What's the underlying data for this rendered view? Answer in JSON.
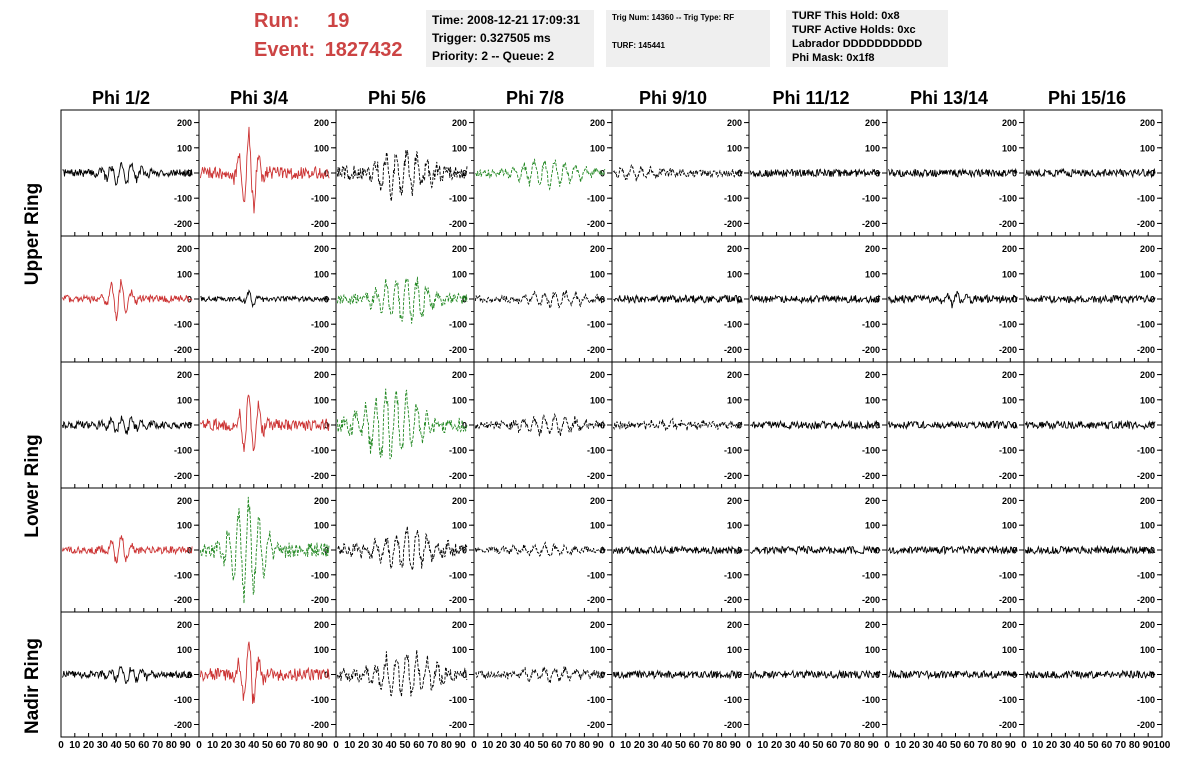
{
  "header": {
    "run_label": "Run:",
    "run_value": "19",
    "event_label": "Event:",
    "event_value": "1827432",
    "time_line": "Time: 2008-12-21 17:09:31",
    "trigger_line": "Trigger: 0.327505 ms",
    "priority_line": "Priority: 2 -- Queue: 2",
    "trig_line": "Trig Num: 14360 -- Trig Type: RF",
    "turf_line": "TURF: 145441",
    "hold_line": "TURF This Hold: 0x8",
    "active_line": "TURF Active Holds: 0xc",
    "labrador_line": "Labrador DDDDDDDDDD",
    "phimask_line": "Phi Mask: 0x1f8"
  },
  "colors": {
    "trigger_red": "#cc3333",
    "trigger_green": "#228822",
    "normal": "#000000",
    "title_red": "#cc4444",
    "info_bg": "#efefef"
  },
  "columns": [
    "Phi 1/2",
    "Phi 3/4",
    "Phi 5/6",
    "Phi 7/8",
    "Phi 9/10",
    "Phi 11/12",
    "Phi 13/14",
    "Phi 15/16"
  ],
  "rows": [
    "Upper Ring",
    "Lower Ring",
    "Nadir Ring"
  ],
  "chart_data": {
    "type": "line",
    "title": "",
    "xlabel": "",
    "ylabel": "",
    "xlim": [
      0,
      100
    ],
    "ylim": [
      -250,
      250
    ],
    "x_ticks": [
      "0",
      "10",
      "20",
      "30",
      "40",
      "50",
      "60",
      "70",
      "80",
      "90",
      "100"
    ],
    "y_ticks": [
      "200",
      "100",
      "0",
      "-100",
      "-200"
    ],
    "panel_rows": 5,
    "panel_cols": 8,
    "grid": false,
    "panels": [
      {
        "row": 0,
        "col": 0,
        "style": "solid",
        "color": "normal",
        "center": 45,
        "width": 15,
        "amp": 50,
        "noise": 15,
        "end": 95
      },
      {
        "row": 0,
        "col": 1,
        "style": "solid",
        "color": "trigger_red",
        "center": 37,
        "width": 8,
        "amp": 190,
        "noise": 25,
        "end": 95
      },
      {
        "row": 0,
        "col": 2,
        "style": "dashed",
        "color": "normal",
        "center": 48,
        "width": 22,
        "amp": 110,
        "noise": 30,
        "end": 95
      },
      {
        "row": 0,
        "col": 3,
        "style": "dashed",
        "color": "trigger_green",
        "center": 55,
        "width": 25,
        "amp": 60,
        "noise": 15,
        "end": 95
      },
      {
        "row": 0,
        "col": 4,
        "style": "dashed",
        "color": "normal",
        "center": 20,
        "width": 20,
        "amp": 25,
        "noise": 15,
        "end": 95
      },
      {
        "row": 0,
        "col": 5,
        "style": "solid",
        "color": "normal",
        "center": 50,
        "width": 30,
        "amp": 0,
        "noise": 15,
        "end": 95
      },
      {
        "row": 0,
        "col": 6,
        "style": "solid",
        "color": "normal",
        "center": 50,
        "width": 30,
        "amp": 0,
        "noise": 15,
        "end": 95
      },
      {
        "row": 0,
        "col": 7,
        "style": "solid",
        "color": "normal",
        "center": 50,
        "width": 30,
        "amp": 0,
        "noise": 15,
        "end": 95
      },
      {
        "row": 1,
        "col": 0,
        "style": "solid",
        "color": "trigger_red",
        "center": 42,
        "width": 9,
        "amp": 90,
        "noise": 15,
        "end": 95
      },
      {
        "row": 1,
        "col": 1,
        "style": "solid",
        "color": "normal",
        "center": 38,
        "width": 5,
        "amp": 40,
        "noise": 10,
        "end": 95
      },
      {
        "row": 1,
        "col": 2,
        "style": "dashed",
        "color": "trigger_green",
        "center": 50,
        "width": 20,
        "amp": 110,
        "noise": 20,
        "end": 95
      },
      {
        "row": 1,
        "col": 3,
        "style": "dashed",
        "color": "normal",
        "center": 60,
        "width": 25,
        "amp": 35,
        "noise": 15,
        "end": 95
      },
      {
        "row": 1,
        "col": 4,
        "style": "solid",
        "color": "normal",
        "center": 50,
        "width": 30,
        "amp": 0,
        "noise": 15,
        "end": 95
      },
      {
        "row": 1,
        "col": 5,
        "style": "solid",
        "color": "normal",
        "center": 50,
        "width": 30,
        "amp": 0,
        "noise": 15,
        "end": 95
      },
      {
        "row": 1,
        "col": 6,
        "style": "solid",
        "color": "normal",
        "center": 50,
        "width": 10,
        "amp": 30,
        "noise": 15,
        "end": 95
      },
      {
        "row": 1,
        "col": 7,
        "style": "solid",
        "color": "normal",
        "center": 50,
        "width": 30,
        "amp": 0,
        "noise": 15,
        "end": 95
      },
      {
        "row": 2,
        "col": 0,
        "style": "solid",
        "color": "normal",
        "center": 45,
        "width": 15,
        "amp": 35,
        "noise": 15,
        "end": 95
      },
      {
        "row": 2,
        "col": 1,
        "style": "solid",
        "color": "trigger_red",
        "center": 37,
        "width": 8,
        "amp": 150,
        "noise": 25,
        "end": 95
      },
      {
        "row": 2,
        "col": 2,
        "style": "dashed",
        "color": "trigger_green",
        "center": 40,
        "width": 22,
        "amp": 160,
        "noise": 30,
        "end": 95
      },
      {
        "row": 2,
        "col": 3,
        "style": "dashed",
        "color": "normal",
        "center": 55,
        "width": 25,
        "amp": 40,
        "noise": 15,
        "end": 95
      },
      {
        "row": 2,
        "col": 4,
        "style": "dashed",
        "color": "normal",
        "center": 50,
        "width": 30,
        "amp": 15,
        "noise": 15,
        "end": 95
      },
      {
        "row": 2,
        "col": 5,
        "style": "solid",
        "color": "normal",
        "center": 50,
        "width": 30,
        "amp": 0,
        "noise": 15,
        "end": 95
      },
      {
        "row": 2,
        "col": 6,
        "style": "solid",
        "color": "normal",
        "center": 50,
        "width": 30,
        "amp": 0,
        "noise": 15,
        "end": 95
      },
      {
        "row": 2,
        "col": 7,
        "style": "solid",
        "color": "normal",
        "center": 50,
        "width": 30,
        "amp": 0,
        "noise": 15,
        "end": 95
      },
      {
        "row": 3,
        "col": 0,
        "style": "solid",
        "color": "trigger_red",
        "center": 42,
        "width": 9,
        "amp": 70,
        "noise": 15,
        "end": 95
      },
      {
        "row": 3,
        "col": 1,
        "style": "dashed",
        "color": "trigger_green",
        "center": 35,
        "width": 15,
        "amp": 230,
        "noise": 30,
        "end": 95
      },
      {
        "row": 3,
        "col": 2,
        "style": "dashed",
        "color": "normal",
        "center": 50,
        "width": 25,
        "amp": 90,
        "noise": 25,
        "end": 95
      },
      {
        "row": 3,
        "col": 3,
        "style": "dashed",
        "color": "normal",
        "center": 50,
        "width": 25,
        "amp": 25,
        "noise": 12,
        "end": 95
      },
      {
        "row": 3,
        "col": 4,
        "style": "solid",
        "color": "normal",
        "center": 50,
        "width": 30,
        "amp": 0,
        "noise": 15,
        "end": 95
      },
      {
        "row": 3,
        "col": 5,
        "style": "solid",
        "color": "normal",
        "center": 50,
        "width": 30,
        "amp": 0,
        "noise": 15,
        "end": 95
      },
      {
        "row": 3,
        "col": 6,
        "style": "solid",
        "color": "normal",
        "center": 50,
        "width": 30,
        "amp": 0,
        "noise": 15,
        "end": 95
      },
      {
        "row": 3,
        "col": 7,
        "style": "solid",
        "color": "normal",
        "center": 50,
        "width": 30,
        "amp": 0,
        "noise": 15,
        "end": 95
      },
      {
        "row": 4,
        "col": 0,
        "style": "solid",
        "color": "normal",
        "center": 48,
        "width": 15,
        "amp": 35,
        "noise": 15,
        "end": 95
      },
      {
        "row": 4,
        "col": 1,
        "style": "solid",
        "color": "trigger_red",
        "center": 37,
        "width": 8,
        "amp": 150,
        "noise": 25,
        "end": 95
      },
      {
        "row": 4,
        "col": 2,
        "style": "dashed",
        "color": "normal",
        "center": 50,
        "width": 25,
        "amp": 100,
        "noise": 25,
        "end": 95
      },
      {
        "row": 4,
        "col": 3,
        "style": "dashed",
        "color": "normal",
        "center": 55,
        "width": 25,
        "amp": 30,
        "noise": 15,
        "end": 95
      },
      {
        "row": 4,
        "col": 4,
        "style": "solid",
        "color": "normal",
        "center": 50,
        "width": 30,
        "amp": 0,
        "noise": 15,
        "end": 95
      },
      {
        "row": 4,
        "col": 5,
        "style": "solid",
        "color": "normal",
        "center": 50,
        "width": 30,
        "amp": 0,
        "noise": 15,
        "end": 95
      },
      {
        "row": 4,
        "col": 6,
        "style": "solid",
        "color": "normal",
        "center": 50,
        "width": 30,
        "amp": 0,
        "noise": 15,
        "end": 95
      },
      {
        "row": 4,
        "col": 7,
        "style": "solid",
        "color": "normal",
        "center": 50,
        "width": 30,
        "amp": 0,
        "noise": 15,
        "end": 95
      }
    ]
  }
}
